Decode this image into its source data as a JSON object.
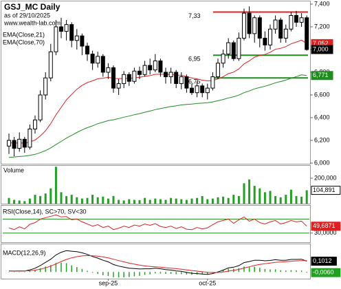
{
  "header": {
    "title": "GSJ_MC Daily",
    "as_of": "as of 29/10/2025",
    "site": "www.wealth-lab.com"
  },
  "chart_data": [
    {
      "type": "candlestick",
      "categories": [
        null,
        null,
        null,
        null,
        null,
        null,
        null,
        null,
        null,
        null,
        null,
        null,
        null,
        null,
        null,
        null,
        null,
        null,
        null,
        "sep-25",
        null,
        null,
        null,
        null,
        null,
        null,
        null,
        null,
        null,
        null,
        null,
        null,
        null,
        null,
        null,
        null,
        null,
        null,
        "oct-25",
        null,
        null,
        null,
        null,
        null,
        null,
        null,
        null,
        null,
        null,
        null,
        null,
        null,
        null,
        null,
        null,
        null,
        null,
        null
      ],
      "open": [
        6150,
        6200,
        6130,
        6210,
        6140,
        6300,
        6380,
        6600,
        6750,
        6980,
        7200,
        7160,
        7220,
        7080,
        7120,
        7030,
        6960,
        6880,
        6940,
        6800,
        6840,
        6660,
        6700,
        6780,
        6720,
        6810,
        6780,
        6860,
        6820,
        6900,
        6800,
        6760,
        6800,
        6700,
        6760,
        6660,
        6620,
        6680,
        6620,
        6660,
        6760,
        6880,
        6960,
        7060,
        6920,
        7100,
        7320,
        7140,
        7280,
        7100,
        7040,
        7180,
        7260,
        7100,
        7180,
        7300,
        7240,
        7280
      ],
      "high": [
        6260,
        6230,
        6270,
        6230,
        6340,
        6420,
        6640,
        6800,
        7050,
        7260,
        7280,
        7260,
        7240,
        7180,
        7140,
        7060,
        6990,
        6980,
        6960,
        6880,
        6860,
        6740,
        6810,
        6800,
        6840,
        6850,
        6900,
        6920,
        6960,
        6920,
        6840,
        6840,
        6820,
        6800,
        6780,
        6700,
        6720,
        6700,
        6700,
        6800,
        6920,
        7000,
        7100,
        7080,
        7150,
        7360,
        7380,
        7300,
        7300,
        7160,
        7220,
        7300,
        7280,
        7220,
        7330,
        7340,
        7320,
        7300
      ],
      "low": [
        6080,
        6060,
        6100,
        6090,
        6120,
        6260,
        6360,
        6560,
        6720,
        6950,
        7100,
        7080,
        7020,
        7000,
        6950,
        6900,
        6820,
        6840,
        6760,
        6740,
        6620,
        6600,
        6660,
        6680,
        6700,
        6740,
        6760,
        6780,
        6800,
        6760,
        6700,
        6700,
        6660,
        6650,
        6620,
        6600,
        6580,
        6580,
        6560,
        6640,
        6740,
        6840,
        6920,
        6900,
        6900,
        7080,
        7100,
        7060,
        7020,
        6990,
        7000,
        7140,
        7060,
        7060,
        7160,
        7200,
        7200,
        6990
      ],
      "close": [
        6200,
        6130,
        6210,
        6140,
        6300,
        6380,
        6600,
        6750,
        6980,
        7200,
        7160,
        7220,
        7080,
        7120,
        7030,
        6960,
        6880,
        6940,
        6800,
        6840,
        6660,
        6700,
        6780,
        6720,
        6810,
        6780,
        6860,
        6820,
        6900,
        6800,
        6760,
        6800,
        6700,
        6760,
        6660,
        6620,
        6680,
        6620,
        6660,
        6760,
        6880,
        6960,
        7060,
        6920,
        7100,
        7320,
        7140,
        7280,
        7100,
        7040,
        7180,
        7260,
        7100,
        7180,
        7300,
        7240,
        7280,
        7000
      ],
      "last_close_label": "7,000",
      "candle_color": "#000000",
      "ylim": [
        5994,
        7424
      ],
      "yticks": [
        {
          "value": 6000,
          "label": "6,000"
        },
        {
          "value": 6200,
          "label": "6,200"
        },
        {
          "value": 6400,
          "label": "6,400"
        },
        {
          "value": 6600,
          "label": "6,600"
        },
        {
          "value": 6800,
          "label": "6,800"
        },
        {
          "value": 7000,
          "label": "7,000"
        },
        {
          "value": 7200,
          "label": "7,200"
        },
        {
          "value": 7400,
          "label": "7,400"
        }
      ],
      "series": [
        {
          "name": "EMA(Close,21)",
          "color": "#e02020",
          "last_value_label": "7,052",
          "values": [
            6180,
            6175,
            6178,
            6175,
            6186,
            6203,
            6239,
            6285,
            6348,
            6425,
            6491,
            6557,
            6604,
            6650,
            6684,
            6709,
            6724,
            6743,
            6748,
            6756,
            6747,
            6743,
            6747,
            6745,
            6752,
            6755,
            6765,
            6770,
            6782,
            6783,
            6780,
            6782,
            6774,
            6773,
            6762,
            6749,
            6742,
            6730,
            6724,
            6727,
            6741,
            6761,
            6788,
            6801,
            6829,
            6874,
            6899,
            6933,
            6948,
            6956,
            6976,
            7002,
            7011,
            7026,
            7050,
            7066,
            7083,
            7052
          ]
        },
        {
          "name": "EMA(Close,70)",
          "color": "#1e8c1e",
          "last_value_label": "6,771",
          "values": [
            6050,
            6054,
            6058,
            6061,
            6068,
            6077,
            6092,
            6110,
            6134,
            6163,
            6191,
            6220,
            6244,
            6270,
            6292,
            6312,
            6328,
            6347,
            6360,
            6374,
            6382,
            6392,
            6404,
            6414,
            6426,
            6436,
            6448,
            6458,
            6471,
            6480,
            6489,
            6498,
            6504,
            6512,
            6517,
            6520,
            6525,
            6528,
            6532,
            6539,
            6549,
            6560,
            6574,
            6584,
            6599,
            6620,
            6635,
            6653,
            6666,
            6677,
            6691,
            6707,
            6718,
            6731,
            6747,
            6762,
            6777,
            6771
          ]
        }
      ],
      "levels": [
        {
          "value": 7330,
          "label": "7,33",
          "color": "#e02020"
        },
        {
          "value": 6950,
          "label": "6,95",
          "color": "#1e8c1e"
        },
        {
          "value": 6750,
          "label": "6,75",
          "color": "#1e8c1e"
        }
      ]
    },
    {
      "type": "bar",
      "title": "Volume",
      "color": "#22a022",
      "last_value_label": "104,891",
      "values": [
        45000,
        30000,
        25000,
        20000,
        40000,
        70000,
        60000,
        80000,
        120000,
        290000,
        90000,
        60000,
        70000,
        50000,
        40000,
        45000,
        70000,
        50000,
        55000,
        40000,
        60000,
        30000,
        25000,
        35000,
        30000,
        28000,
        45000,
        30000,
        40000,
        35000,
        30000,
        45000,
        40000,
        35000,
        30000,
        40000,
        45000,
        60000,
        35000,
        40000,
        50000,
        55000,
        45000,
        70000,
        60000,
        160000,
        190000,
        140000,
        120000,
        90000,
        100000,
        60000,
        50000,
        70000,
        110000,
        60000,
        55000,
        104891
      ],
      "ylim": [
        0,
        297000
      ],
      "yticks": [
        {
          "value": 200000,
          "label": "200,000"
        }
      ]
    },
    {
      "type": "line",
      "title": "RSI(Close,14), SC>70, SV<30",
      "color": "#e02020",
      "last_value_label": "49,6871",
      "values": [
        45,
        40,
        48,
        42,
        55,
        60,
        70,
        74,
        78,
        82,
        76,
        77,
        68,
        70,
        62,
        56,
        50,
        54,
        46,
        50,
        40,
        44,
        50,
        46,
        53,
        50,
        56,
        52,
        57,
        49,
        46,
        50,
        43,
        48,
        41,
        40,
        46,
        42,
        45,
        54,
        62,
        66,
        70,
        58,
        68,
        76,
        64,
        70,
        60,
        56,
        62,
        66,
        56,
        60,
        66,
        62,
        64,
        49.6871
      ],
      "levels": [
        70,
        30
      ],
      "level_color": "#1e8c1e",
      "ylim": [
        4,
        108
      ],
      "yticks": [
        {
          "value": 30,
          "label": "30,0000"
        }
      ]
    },
    {
      "type": "macd",
      "title": "MACD(12,26,9)",
      "ylim": [
        -0.063,
        0.26
      ],
      "series": [
        {
          "color": "#000000",
          "last_value_label": "0,1012",
          "values": [
            0.01,
            0.008,
            0.01,
            0.009,
            0.02,
            0.035,
            0.06,
            0.09,
            0.12,
            0.16,
            0.185,
            0.2,
            0.195,
            0.19,
            0.18,
            0.165,
            0.145,
            0.13,
            0.11,
            0.095,
            0.07,
            0.055,
            0.045,
            0.035,
            0.032,
            0.028,
            0.03,
            0.03,
            0.035,
            0.03,
            0.022,
            0.018,
            0.01,
            0.006,
            -0.004,
            -0.012,
            -0.015,
            -0.02,
            -0.022,
            -0.015,
            0.0,
            0.018,
            0.038,
            0.045,
            0.06,
            0.088,
            0.098,
            0.11,
            0.11,
            0.105,
            0.108,
            0.115,
            0.11,
            0.11,
            0.118,
            0.118,
            0.12,
            0.1012
          ]
        },
        {
          "color": "#e02020",
          "values": [
            0.01,
            0.01,
            0.01,
            0.01,
            0.012,
            0.017,
            0.026,
            0.039,
            0.055,
            0.076,
            0.098,
            0.118,
            0.133,
            0.144,
            0.151,
            0.154,
            0.152,
            0.148,
            0.141,
            0.132,
            0.12,
            0.107,
            0.095,
            0.083,
            0.073,
            0.064,
            0.057,
            0.052,
            0.048,
            0.045,
            0.04,
            0.036,
            0.031,
            0.026,
            0.02,
            0.014,
            0.008,
            0.002,
            -0.003,
            -0.005,
            -0.004,
            0.0,
            0.008,
            0.015,
            0.024,
            0.037,
            0.049,
            0.061,
            0.071,
            0.078,
            0.084,
            0.09,
            0.094,
            0.097,
            0.101,
            0.104,
            0.107,
            0.1072
          ]
        }
      ],
      "histogram": {
        "color": "#22a022",
        "last_value_label": "-0,0060",
        "values": [
          0,
          -0.002,
          0,
          -0.001,
          0.008,
          0.018,
          0.034,
          0.051,
          0.065,
          0.084,
          0.087,
          0.082,
          0.062,
          0.046,
          0.029,
          0.011,
          -0.007,
          -0.018,
          -0.031,
          -0.037,
          -0.05,
          -0.052,
          -0.05,
          -0.048,
          -0.041,
          -0.036,
          -0.027,
          -0.022,
          -0.013,
          -0.015,
          -0.018,
          -0.018,
          -0.021,
          -0.02,
          -0.024,
          -0.026,
          -0.023,
          -0.022,
          -0.019,
          -0.01,
          0.004,
          0.018,
          0.03,
          0.03,
          0.036,
          0.051,
          0.049,
          0.049,
          0.039,
          0.027,
          0.024,
          0.025,
          0.016,
          0.013,
          0.017,
          0.014,
          0.013,
          -0.006
        ]
      }
    }
  ]
}
